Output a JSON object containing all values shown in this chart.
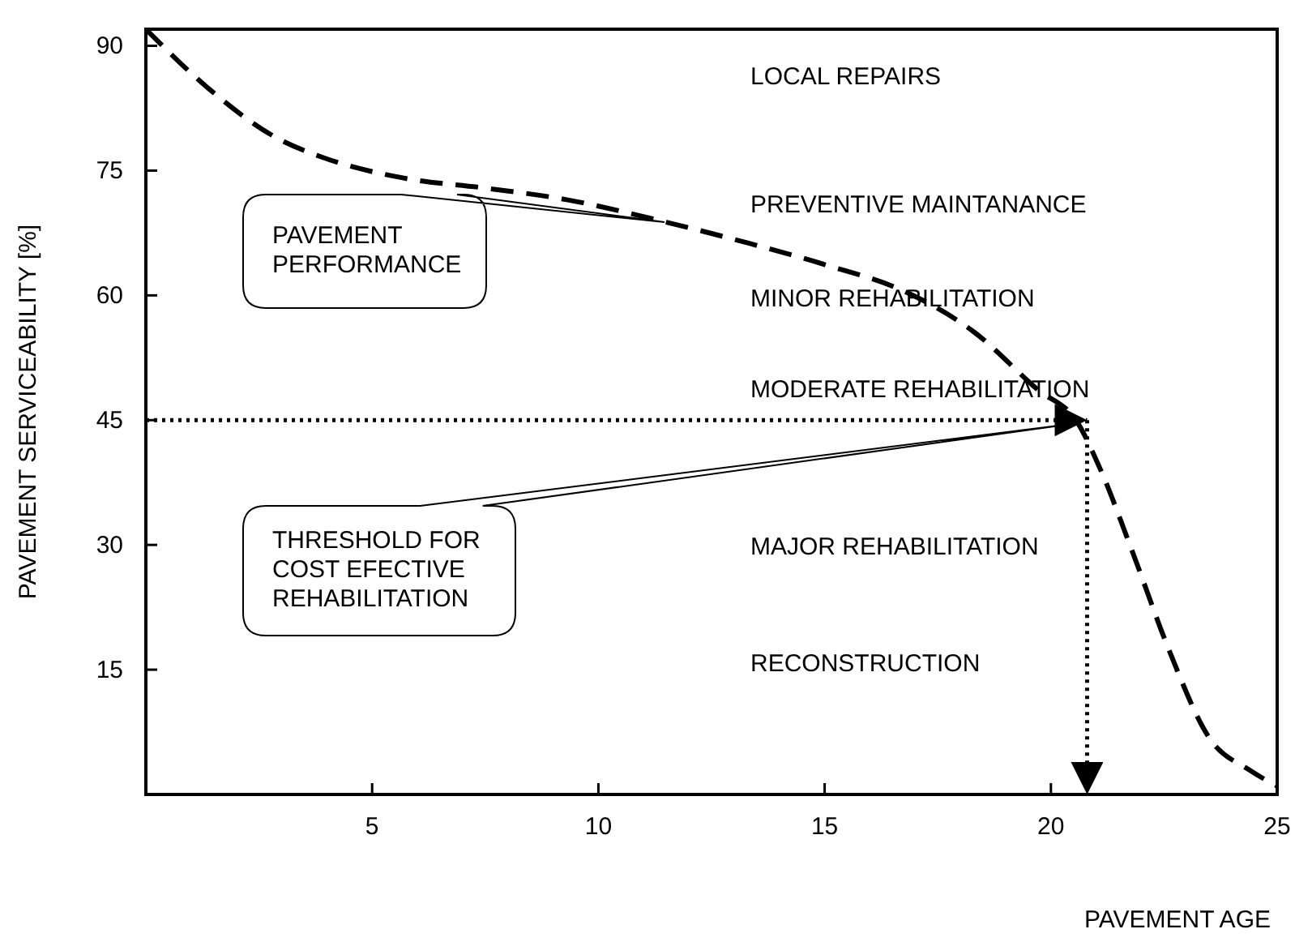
{
  "chart_data": {
    "type": "line",
    "xlabel": "PAVEMENT AGE",
    "ylabel": "PAVEMENT  SERVICEABILITY  [%]",
    "xlim": [
      0,
      25
    ],
    "ylim": [
      0,
      92
    ],
    "xticks": [
      5,
      10,
      15,
      20,
      25
    ],
    "yticks": [
      15,
      30,
      45,
      60,
      75,
      90
    ],
    "grid": false,
    "line_style": "dashed",
    "marker": "none",
    "series": [
      {
        "color": "#000000",
        "x": [
          0,
          1.4,
          2.9,
          3.9,
          5.7,
          7.5,
          9.3,
          11.5,
          13.3,
          15,
          16.8,
          18.3,
          19.7,
          20.6,
          21.1,
          21.8,
          22.6,
          23.5,
          24.4,
          25
        ],
        "values": [
          92,
          84.8,
          78.9,
          76.6,
          74.1,
          72.9,
          71.5,
          68.8,
          66.3,
          63.7,
          60.4,
          55.6,
          48.7,
          44.6,
          39,
          29.2,
          17.5,
          6.8,
          2.9,
          1
        ]
      }
    ],
    "ref_lines": [
      {
        "axis": "y",
        "value": 45,
        "line_style": "dotted",
        "color": "#000000"
      },
      {
        "axis": "x",
        "value": 20.8,
        "line_style": "dotted",
        "color": "#000000"
      }
    ],
    "annotations": [
      "LOCAL REPAIRS",
      "PREVENTIVE MAINTANANCE",
      "MINOR REHABILITATION",
      "MODERATE  REHABILITATION",
      "MAJOR  REHABILITATION",
      "RECONSTRUCTION",
      "PAVEMENT\nPERFORMANCE",
      "THRESHOLD FOR\nCOST EFECTIVE\nREHABILITATION"
    ]
  }
}
